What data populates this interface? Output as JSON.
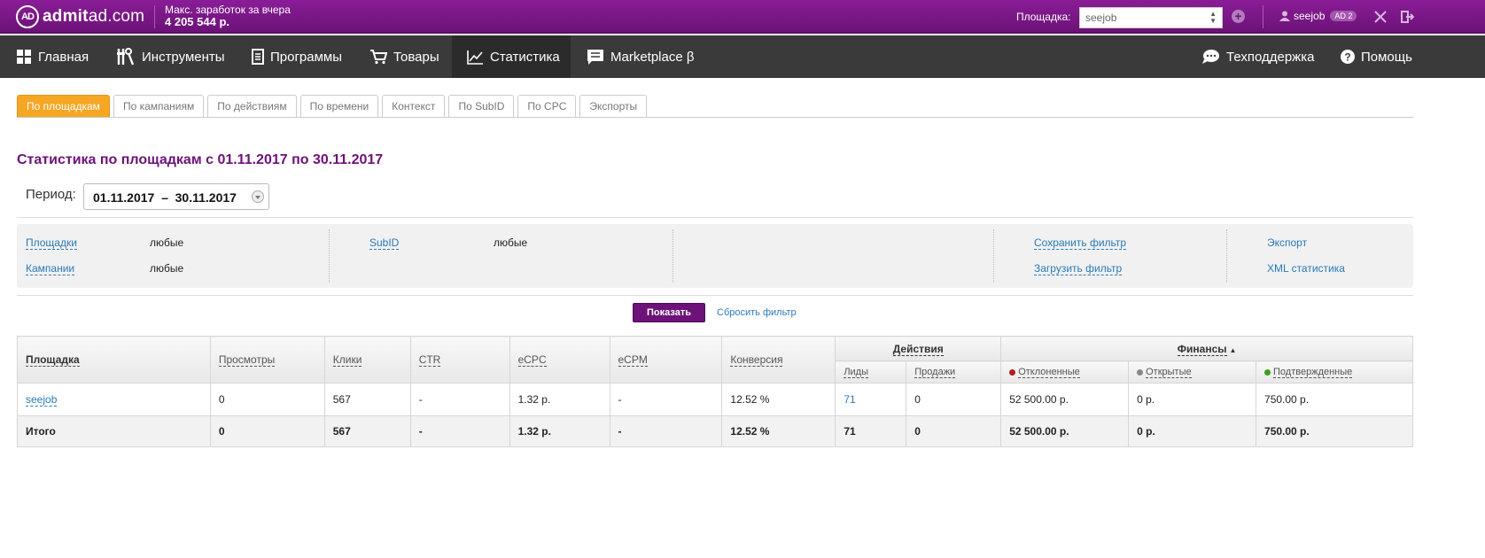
{
  "header": {
    "logo_ad": "AD",
    "logo_text_bold": "admit",
    "logo_text_rest": "ad.com",
    "earn_label": "Макс. заработок за вчера",
    "earn_value": "4 205 544 р.",
    "platform_label": "Площадка:",
    "platform_value": "seejob",
    "user_name": "seejob",
    "user_badge": "AD 2",
    "colors": {
      "brand": "#6c1278",
      "accent": "#f5a623",
      "link": "#2a7ab8"
    }
  },
  "nav": {
    "items": [
      {
        "label": "Главная",
        "icon": "grid-icon"
      },
      {
        "label": "Инструменты",
        "icon": "tools-icon"
      },
      {
        "label": "Программы",
        "icon": "document-icon"
      },
      {
        "label": "Товары",
        "icon": "cart-icon"
      },
      {
        "label": "Статистика",
        "icon": "chart-icon",
        "active": true
      },
      {
        "label": "Marketplace β",
        "icon": "chat-icon"
      }
    ],
    "support": "Техподдержка",
    "help": "Помощь"
  },
  "tabs": [
    {
      "label": "По площадкам",
      "active": true
    },
    {
      "label": "По кампаниям"
    },
    {
      "label": "По действиям"
    },
    {
      "label": "По времени"
    },
    {
      "label": "Контекст"
    },
    {
      "label": "По SubID"
    },
    {
      "label": "По CPC"
    },
    {
      "label": "Экспорты"
    }
  ],
  "page": {
    "title": "Статистика по площадкам с 01.11.2017 по 30.11.2017",
    "period_label": "Период:",
    "period_value": "01.11.2017  –  30.11.2017"
  },
  "filter": {
    "platforms_label": "Площадки",
    "platforms_value": "любые",
    "campaigns_label": "Кампании",
    "campaigns_value": "любые",
    "subid_label": "SubID",
    "subid_value": "любые",
    "save_filter": "Сохранить фильтр",
    "load_filter": "Загрузить фильтр",
    "export": "Экспорт",
    "xml_stats": "XML статистика",
    "show_button": "Показать",
    "reset": "Сбросить фильтр"
  },
  "table": {
    "headers": {
      "platform": "Площадка",
      "views": "Просмотры",
      "clicks": "Клики",
      "ctr": "CTR",
      "ecpc": "eCPC",
      "ecpm": "eCPM",
      "conversion": "Конверсия",
      "actions": "Действия",
      "finance": "Финансы",
      "leads": "Лиды",
      "sales": "Продажи",
      "rejected": "Отклоненные",
      "open": "Открытые",
      "confirmed": "Подтвержденные"
    },
    "status_colors": {
      "rejected": "#b01e1e",
      "open": "#888888",
      "confirmed": "#3aa01c"
    },
    "rows": [
      {
        "platform": "seejob",
        "views": "0",
        "clicks": "567",
        "ctr": "-",
        "ecpc": "1.32 р.",
        "ecpm": "-",
        "conversion": "12.52 %",
        "leads": "71",
        "sales": "0",
        "rejected": "52 500.00 р.",
        "open": "0 р.",
        "confirmed": "750.00 р."
      }
    ],
    "total": {
      "label": "Итого",
      "views": "0",
      "clicks": "567",
      "ctr": "-",
      "ecpc": "1.32 р.",
      "ecpm": "-",
      "conversion": "12.52 %",
      "leads": "71",
      "sales": "0",
      "rejected": "52 500.00 р.",
      "open": "0 р.",
      "confirmed": "750.00 р."
    }
  }
}
